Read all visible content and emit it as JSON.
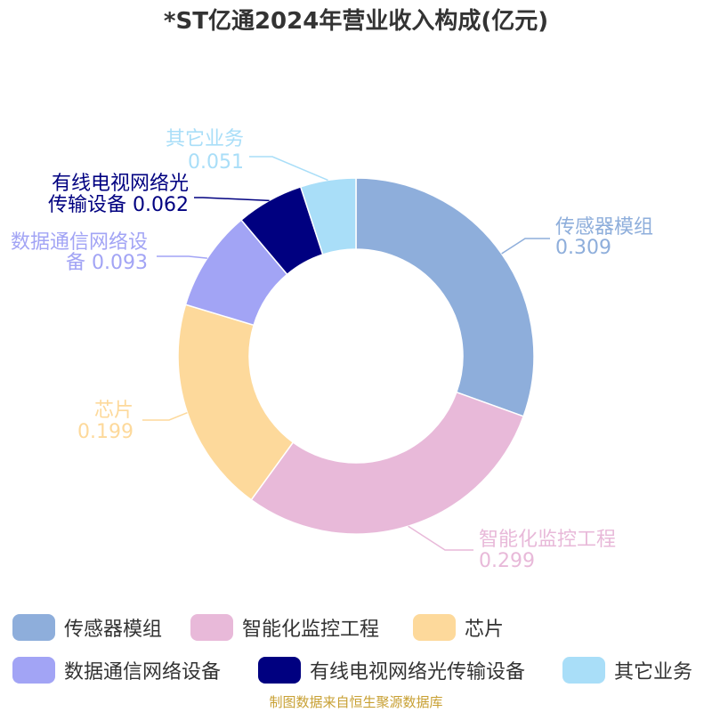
{
  "chart_data": {
    "type": "pie",
    "variant": "donut",
    "title": "*ST亿通2024年营业收入构成(亿元)",
    "legend_position": "bottom",
    "slices": [
      {
        "name": "传感器模组",
        "label_lines": [
          "传感器模组",
          "0.309"
        ],
        "value": 0.309,
        "color": "#8eaedb"
      },
      {
        "name": "智能化监控工程",
        "label_lines": [
          "智能化监控工程",
          "0.299"
        ],
        "value": 0.299,
        "color": "#e8b9d9"
      },
      {
        "name": "芯片",
        "label_lines": [
          "芯片",
          "0.199"
        ],
        "value": 0.199,
        "color": "#fdd99b"
      },
      {
        "name": "数据通信网络设备",
        "label_lines": [
          "数据通信网络设",
          "备 0.093"
        ],
        "value": 0.093,
        "color": "#a2a4f5"
      },
      {
        "name": "有线电视网络光传输设备",
        "label_lines": [
          "有线电视网络光",
          "传输设备 0.062"
        ],
        "value": 0.062,
        "color": "#000080"
      },
      {
        "name": "其它业务",
        "label_lines": [
          "其它业务",
          "0.051"
        ],
        "value": 0.051,
        "color": "#a9def8"
      }
    ]
  },
  "source": "制图数据来自恒生聚源数据库",
  "colors": {
    "title": "#333333",
    "source": "#c8a033"
  }
}
